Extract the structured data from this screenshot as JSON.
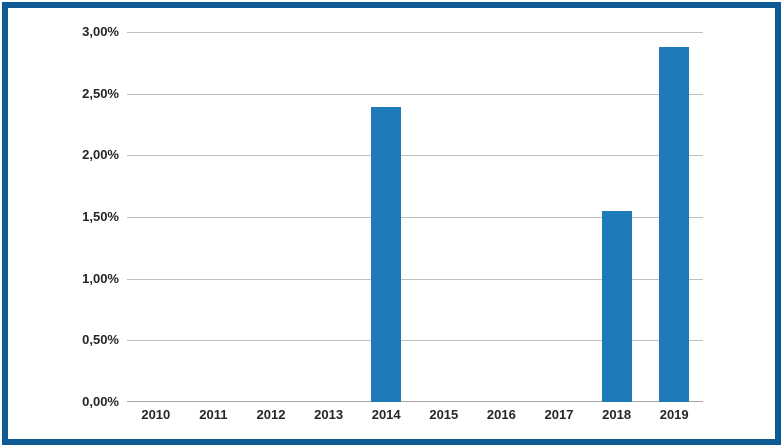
{
  "window": {
    "background": "#ffffff",
    "frame_color": "#0e5a94"
  },
  "chart_data": {
    "type": "bar",
    "categories": [
      "2010",
      "2011",
      "2012",
      "2013",
      "2014",
      "2015",
      "2016",
      "2017",
      "2018",
      "2019"
    ],
    "values": [
      0,
      0,
      0,
      0,
      2.39,
      0,
      0,
      0,
      1.55,
      2.88
    ],
    "y_ticks": [
      {
        "value": 0.0,
        "label": "0,00%"
      },
      {
        "value": 0.5,
        "label": "0,50%"
      },
      {
        "value": 1.0,
        "label": "1,00%"
      },
      {
        "value": 1.5,
        "label": "1,50%"
      },
      {
        "value": 2.0,
        "label": "2,00%"
      },
      {
        "value": 2.5,
        "label": "2,50%"
      },
      {
        "value": 3.0,
        "label": "3,00%"
      }
    ],
    "ylim": [
      0,
      3
    ],
    "xlabel": "",
    "ylabel": "",
    "grid": true,
    "legend": "none",
    "bar_color": "#1f7bb7",
    "gridline_color": "#bfbfbf",
    "axis_line_color": "#a6a6a6",
    "tick_text_color": "#262626"
  }
}
